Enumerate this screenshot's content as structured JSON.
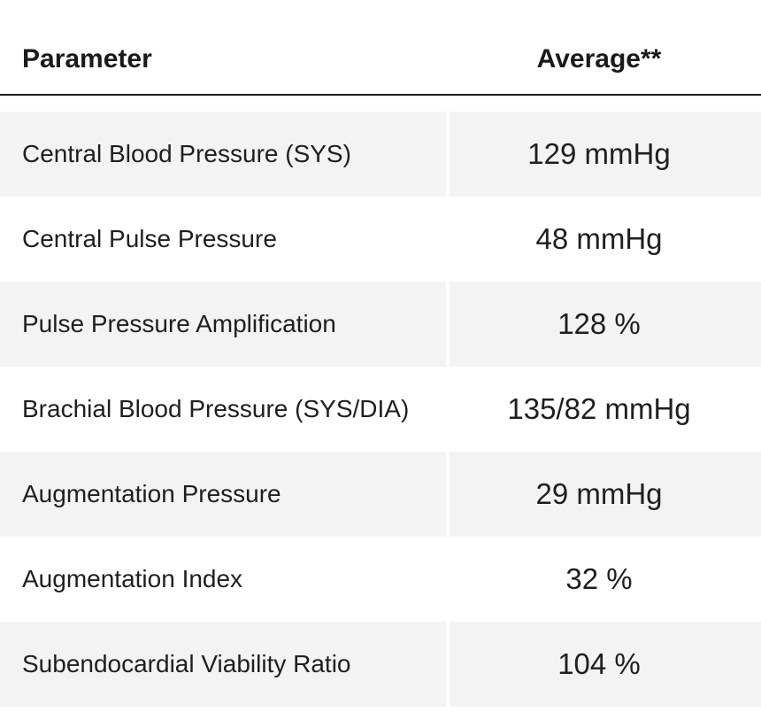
{
  "header": {
    "parameter_label": "Parameter",
    "average_label": "Average**"
  },
  "rows": [
    {
      "parameter": "Central Blood Pressure (SYS)",
      "average": "129 mmHg"
    },
    {
      "parameter": "Central Pulse Pressure",
      "average": "48 mmHg"
    },
    {
      "parameter": "Pulse Pressure Amplification",
      "average": "128 %"
    },
    {
      "parameter": "Brachial Blood Pressure (SYS/DIA)",
      "average": "135/82 mmHg"
    },
    {
      "parameter": "Augmentation Pressure",
      "average": "29 mmHg"
    },
    {
      "parameter": "Augmentation Index",
      "average": "32 %"
    },
    {
      "parameter": "Subendocardial Viability Ratio",
      "average": "104 %"
    }
  ],
  "colors": {
    "shaded_row": "#f3f3f3",
    "text": "#1f1f1f",
    "header_rule": "#1a1a1a"
  }
}
